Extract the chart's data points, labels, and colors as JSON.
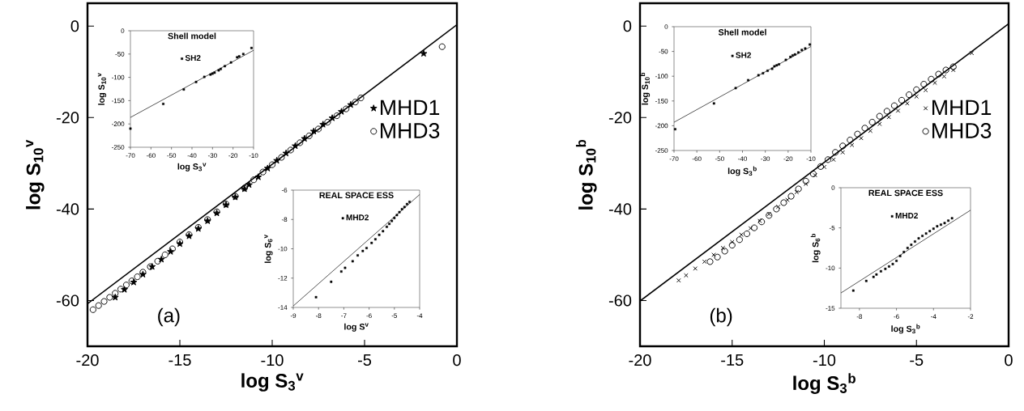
{
  "chart_data": [
    {
      "type": "scatter",
      "xlabel": "log S$_{3}$$^{v}$",
      "ylabel": "log S$_{10}$$^{v}$",
      "xlim": [
        -20,
        0
      ],
      "ylim": [
        -70,
        5
      ],
      "xticks": [
        -20,
        -15,
        -10,
        -5,
        0
      ],
      "yticks": [
        0,
        -20,
        -40,
        -60
      ],
      "legend": "right",
      "annotations": [
        "(a)"
      ],
      "series": [
        {
          "name": "MHD1",
          "color": "#000000",
          "marker": "star",
          "x": [
            -18.5,
            -18.0,
            -17.5,
            -17.0,
            -16.5,
            -16.0,
            -15.5,
            -15.0,
            -14.5,
            -14.0,
            -13.5,
            -13.0,
            -12.5,
            -12.0,
            -11.5,
            -11.25,
            -10.75,
            -10.25,
            -9.75,
            -9.25,
            -8.75,
            -8.25,
            -7.75,
            -7.25,
            -6.75,
            -6.25,
            -5.75,
            -1.8
          ],
          "values": [
            -59.3,
            -57.6,
            -56.0,
            -54.3,
            -52.6,
            -51.0,
            -49.3,
            -47.6,
            -45.9,
            -44.3,
            -42.6,
            -40.9,
            -39.1,
            -37.4,
            -35.6,
            -34.7,
            -33.0,
            -31.1,
            -29.4,
            -27.8,
            -26.2,
            -24.6,
            -23.0,
            -21.5,
            -20.1,
            -18.7,
            -17.2,
            -6.0
          ]
        },
        {
          "name": "MHD3",
          "color": "#000000",
          "marker": "circle",
          "x": [
            -19.7,
            -19.4,
            -19.1,
            -18.8,
            -18.5,
            -18.2,
            -17.9,
            -17.6,
            -17.3,
            -17.0,
            -16.6,
            -16.2,
            -15.8,
            -15.4,
            -15.0,
            -14.5,
            -14.0,
            -13.5,
            -13.0,
            -12.5,
            -12.0,
            -11.5,
            -11.0,
            -10.5,
            -10.0,
            -9.5,
            -9.0,
            -8.5,
            -8.0,
            -7.5,
            -7.0,
            -6.5,
            -6.0,
            -5.5,
            -5.2,
            -0.8
          ],
          "values": [
            -62.0,
            -61.1,
            -60.2,
            -59.3,
            -58.4,
            -57.5,
            -56.6,
            -55.7,
            -54.8,
            -53.8,
            -52.6,
            -51.4,
            -50.0,
            -48.7,
            -47.2,
            -45.6,
            -44.0,
            -42.3,
            -40.6,
            -38.9,
            -37.2,
            -35.4,
            -33.6,
            -31.9,
            -30.3,
            -28.7,
            -27.1,
            -25.5,
            -24.0,
            -22.5,
            -21.0,
            -19.6,
            -18.1,
            -16.6,
            -15.7,
            -4.5
          ]
        },
        {
          "type": "line",
          "color": "#000000",
          "marker": "none",
          "x": [
            -20,
            0
          ],
          "values": [
            -60.7,
            0.3
          ]
        }
      ]
    },
    {
      "type": "scatter",
      "title": "Shell model",
      "xlabel": "log S$_{3}$$^{v}$",
      "ylabel": "log S$_{10}$$^{v}$",
      "xlim": [
        -70,
        -10
      ],
      "ylim": [
        -250,
        0
      ],
      "xticks": [
        -70,
        -60,
        -50,
        -40,
        -30,
        -20,
        -10
      ],
      "yticks": [
        -250,
        -200,
        -150,
        -100,
        -50,
        0
      ],
      "legend": "top",
      "series": [
        {
          "name": "SH2",
          "color": "#000000",
          "marker": "square",
          "x": [
            -70,
            -54,
            -44,
            -38,
            -34,
            -31,
            -30,
            -29,
            -27,
            -26,
            -24,
            -21,
            -18,
            -17,
            -15,
            -11
          ],
          "values": [
            -210,
            -157,
            -126,
            -110,
            -99,
            -94,
            -92,
            -90,
            -85,
            -82,
            -76,
            -68,
            -57,
            -55,
            -50,
            -37
          ]
        },
        {
          "type": "line",
          "color": "#000000",
          "marker": "none",
          "x": [
            -70,
            -10
          ],
          "values": [
            -186,
            -42
          ]
        }
      ]
    },
    {
      "type": "scatter",
      "title": "REAL SPACE ESS",
      "xlabel": "log S$^{v}$",
      "ylabel": "log S$_{6}$$^{v}$",
      "xlim": [
        -9,
        -4
      ],
      "ylim": [
        -14,
        -6
      ],
      "xticks": [
        -9,
        -8,
        -7,
        -6,
        -5,
        -4
      ],
      "yticks": [
        -14,
        -12,
        -10,
        -8,
        -6
      ],
      "legend": "top",
      "series": [
        {
          "name": "MHD2",
          "color": "#000000",
          "marker": "square",
          "x": [
            -8.1,
            -7.5,
            -7.1,
            -6.95,
            -6.65,
            -6.45,
            -6.25,
            -6.1,
            -5.9,
            -5.75,
            -5.6,
            -5.45,
            -5.3,
            -5.2,
            -5.1,
            -5.0,
            -4.9,
            -4.8,
            -4.7,
            -4.6,
            -4.5,
            -4.4
          ],
          "values": [
            -13.3,
            -12.25,
            -11.55,
            -11.3,
            -10.85,
            -10.45,
            -10.15,
            -9.95,
            -9.6,
            -9.35,
            -9.05,
            -8.8,
            -8.5,
            -8.3,
            -8.1,
            -7.9,
            -7.7,
            -7.5,
            -7.3,
            -7.15,
            -6.95,
            -6.8
          ]
        },
        {
          "type": "line",
          "color": "#000000",
          "marker": "none",
          "x": [
            -9,
            -4
          ],
          "values": [
            -13.9,
            -6.3
          ]
        }
      ]
    },
    {
      "type": "scatter",
      "xlabel": "log S$_{3}$$^{b}$",
      "ylabel": "log S$_{10}$$^{b}$",
      "xlim": [
        -20,
        0
      ],
      "ylim": [
        -70,
        5
      ],
      "xticks": [
        -20,
        -15,
        -10,
        -5,
        0
      ],
      "yticks": [
        0,
        -20,
        -40,
        -60
      ],
      "legend": "right",
      "annotations": [
        "(b)"
      ],
      "series": [
        {
          "name": "MHD1",
          "color": "#000000",
          "marker": "cross",
          "x": [
            -17.9,
            -17.5,
            -17.0,
            -16.5,
            -16.0,
            -15.5,
            -15.0,
            -14.5,
            -14.0,
            -13.5,
            -13.0,
            -12.5,
            -12.0,
            -11.5,
            -11.0,
            -10.5,
            -10.0,
            -9.5,
            -9.0,
            -8.5,
            -8.0,
            -7.5,
            -7.0,
            -6.5,
            -6.0,
            -5.5,
            -5.0,
            -4.5,
            -4.0,
            -3.5,
            -3.0,
            -2.0
          ],
          "values": [
            -55.6,
            -54.5,
            -53.0,
            -51.5,
            -50.0,
            -48.5,
            -47.2,
            -45.6,
            -44.2,
            -42.6,
            -41.1,
            -39.5,
            -38.0,
            -36.3,
            -34.5,
            -32.6,
            -30.8,
            -29.2,
            -27.6,
            -26.0,
            -24.5,
            -22.9,
            -21.4,
            -19.9,
            -18.5,
            -16.9,
            -15.4,
            -14.0,
            -12.4,
            -11.0,
            -9.6,
            -5.9
          ]
        },
        {
          "name": "MHD3",
          "color": "#000000",
          "marker": "circle",
          "x": [
            -16.2,
            -15.8,
            -15.4,
            -15.0,
            -14.6,
            -14.2,
            -13.8,
            -13.4,
            -13.0,
            -12.6,
            -12.2,
            -11.8,
            -11.4,
            -11.0,
            -10.6,
            -10.2,
            -9.8,
            -9.4,
            -9.0,
            -8.6,
            -8.2,
            -7.8,
            -7.4,
            -7.0,
            -6.6,
            -6.2,
            -5.8,
            -5.4,
            -5.0,
            -4.6,
            -4.2,
            -3.8,
            -3.4,
            -3.0
          ],
          "values": [
            -51.5,
            -50.5,
            -49.2,
            -47.9,
            -46.7,
            -45.4,
            -44.1,
            -42.8,
            -41.4,
            -40.0,
            -38.6,
            -37.2,
            -35.6,
            -33.9,
            -32.3,
            -30.7,
            -29.2,
            -27.6,
            -26.2,
            -24.9,
            -23.6,
            -22.3,
            -21.0,
            -19.7,
            -18.6,
            -17.4,
            -16.2,
            -15.0,
            -13.9,
            -12.7,
            -11.6,
            -10.5,
            -9.6,
            -8.9
          ]
        },
        {
          "type": "line",
          "color": "#000000",
          "marker": "none",
          "x": [
            -20,
            0
          ],
          "values": [
            -60.1,
            0.5
          ]
        }
      ]
    },
    {
      "type": "scatter",
      "title": "Shell model",
      "xlabel": "log S$_{3}$$^{b}$",
      "ylabel": "log S$_{10}$$^{b}$",
      "xlim": [
        -70,
        -10
      ],
      "ylim": [
        -250,
        0
      ],
      "xticks": [
        -70,
        -60,
        -50,
        -40,
        -30,
        -20,
        -10
      ],
      "yticks": [
        -250,
        -200,
        -150,
        -100,
        -50,
        0
      ],
      "legend": "top",
      "series": [
        {
          "name": "SH2",
          "color": "#000000",
          "marker": "square",
          "x": [
            -69.5,
            -52.5,
            -43,
            -37.5,
            -33,
            -31,
            -29,
            -27,
            -26,
            -25,
            -24,
            -21,
            -19,
            -18,
            -17,
            -15.5,
            -14,
            -12.5,
            -10.5
          ],
          "values": [
            -207,
            -155,
            -124,
            -108,
            -98,
            -94,
            -89,
            -85,
            -80,
            -78,
            -76,
            -67,
            -61,
            -58,
            -56,
            -52,
            -47,
            -44,
            -36
          ]
        },
        {
          "type": "line",
          "color": "#000000",
          "marker": "none",
          "x": [
            -70,
            -10
          ],
          "values": [
            -193,
            -40
          ]
        }
      ]
    },
    {
      "type": "scatter",
      "title": "REAL SPACE ESS",
      "xlabel": "log S$_{3}$$^{b}$",
      "ylabel": "log S$_{6}$$^{b}$",
      "xlim": [
        -9,
        -2
      ],
      "ylim": [
        -15,
        0
      ],
      "xticks": [
        -8,
        -6,
        -4,
        -2
      ],
      "yticks": [
        -15,
        -10,
        -5,
        0
      ],
      "legend": "top",
      "series": [
        {
          "name": "MHD2",
          "color": "#000000",
          "marker": "square",
          "x": [
            -8.33,
            -7.63,
            -7.24,
            -7.08,
            -6.84,
            -6.6,
            -6.4,
            -6.2,
            -6.0,
            -5.8,
            -5.6,
            -5.4,
            -5.2,
            -5.0,
            -4.8,
            -4.6,
            -4.4,
            -4.2,
            -4.0,
            -3.8,
            -3.6,
            -3.4,
            -3.2,
            -3.0
          ],
          "values": [
            -12.8,
            -11.6,
            -11.1,
            -10.8,
            -10.4,
            -10.1,
            -9.8,
            -9.5,
            -9.1,
            -8.5,
            -8.0,
            -7.5,
            -7.1,
            -6.7,
            -6.3,
            -6.0,
            -5.7,
            -5.4,
            -5.1,
            -4.8,
            -4.6,
            -4.4,
            -4.1,
            -3.8
          ]
        },
        {
          "type": "line",
          "color": "#000000",
          "marker": "none",
          "x": [
            -9,
            -2
          ],
          "values": [
            -13.1,
            -2.8
          ]
        }
      ]
    }
  ]
}
